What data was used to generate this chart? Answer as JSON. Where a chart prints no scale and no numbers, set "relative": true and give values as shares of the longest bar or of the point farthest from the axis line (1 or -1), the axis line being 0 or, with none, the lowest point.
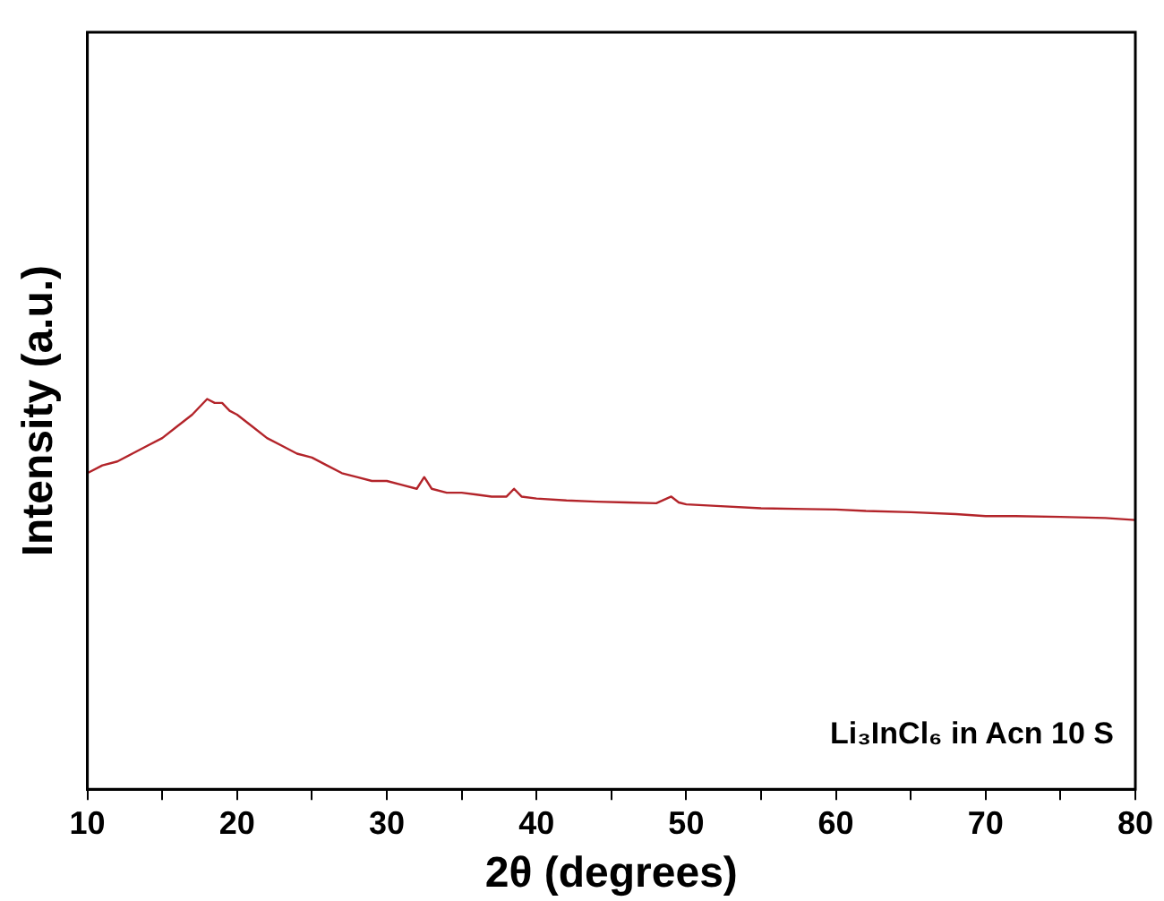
{
  "chart_data": {
    "type": "line",
    "relative": true,
    "xlabel": "2θ (degrees)",
    "ylabel": "Intensity (a.u.)",
    "x": [
      10,
      11,
      12,
      13,
      14,
      15,
      16,
      17,
      17.5,
      18,
      18.5,
      19,
      19.5,
      20,
      21,
      22,
      23,
      24,
      25,
      26,
      27,
      28,
      29,
      30,
      31,
      32,
      32.5,
      33,
      34,
      35,
      36,
      37,
      38,
      38.5,
      39,
      40,
      42,
      44,
      46,
      48,
      49,
      49.5,
      50,
      52,
      55,
      58,
      60,
      62,
      65,
      68,
      70,
      72,
      75,
      78,
      80
    ],
    "series": [
      {
        "color": "#b3242a",
        "values": [
          0.81,
          0.83,
          0.84,
          0.86,
          0.88,
          0.9,
          0.93,
          0.96,
          0.98,
          1.0,
          0.99,
          0.99,
          0.97,
          0.96,
          0.93,
          0.9,
          0.88,
          0.86,
          0.85,
          0.83,
          0.81,
          0.8,
          0.79,
          0.79,
          0.78,
          0.77,
          0.8,
          0.77,
          0.76,
          0.76,
          0.755,
          0.75,
          0.75,
          0.77,
          0.75,
          0.745,
          0.74,
          0.737,
          0.735,
          0.733,
          0.75,
          0.735,
          0.73,
          0.726,
          0.72,
          0.718,
          0.717,
          0.713,
          0.71,
          0.705,
          0.7,
          0.7,
          0.698,
          0.695,
          0.69
        ]
      }
    ],
    "xlim": [
      10,
      80
    ],
    "xticks": [
      10,
      {
        "value": 15,
        "label": null
      },
      20,
      {
        "value": 25,
        "label": null
      },
      30,
      {
        "value": 35,
        "label": null
      },
      40,
      {
        "value": 45,
        "label": null
      },
      50,
      {
        "value": 55,
        "label": null
      },
      60,
      {
        "value": 65,
        "label": null
      },
      70,
      {
        "value": 75,
        "label": null
      },
      80
    ],
    "annotations": [
      "Li₃InCl₆ in Acn 10 S"
    ],
    "legend": false,
    "grid": false
  }
}
